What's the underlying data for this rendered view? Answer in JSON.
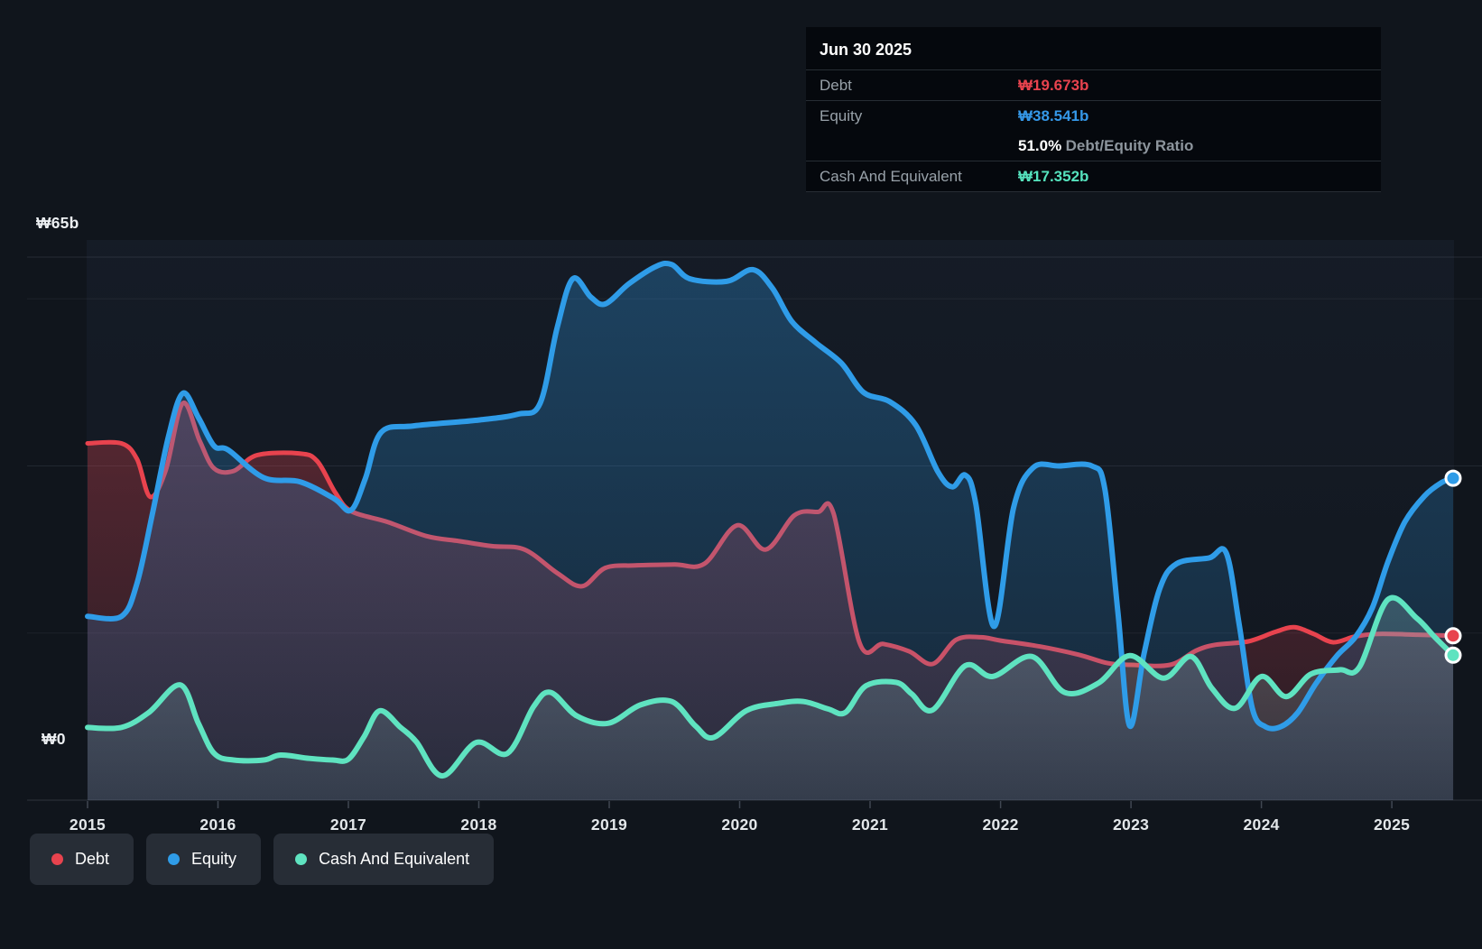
{
  "tooltip": {
    "date": "Jun 30 2025",
    "debt_label": "Debt",
    "debt_value": "₩19.673b",
    "equity_label": "Equity",
    "equity_value": "₩38.541b",
    "ratio_value": "51.0%",
    "ratio_label": "Debt/Equity Ratio",
    "cash_label": "Cash And Equivalent",
    "cash_value": "₩17.352b"
  },
  "y_axis": {
    "top_label": "₩65b",
    "zero_label": "₩0"
  },
  "legend": [
    {
      "label": "Debt",
      "color": "#e8434e"
    },
    {
      "label": "Equity",
      "color": "#2f9ce8"
    },
    {
      "label": "Cash And Equivalent",
      "color": "#5fe3c0"
    }
  ],
  "colors": {
    "debt": "#e8434e",
    "equity": "#2f9ce8",
    "cash": "#5fe3c0",
    "grid": "#9aa6b6",
    "tick_label": "#e3e7ea",
    "background": "#10151c",
    "tooltip_bg": "#05080d"
  },
  "chart_data": {
    "type": "area",
    "currency_unit": "₩ billions",
    "xlabel": "",
    "ylabel": "",
    "ylim": [
      0,
      65
    ],
    "xlim": [
      2015.0,
      2025.47
    ],
    "y_gridlines": [
      0,
      20,
      40,
      60,
      65
    ],
    "x_ticks": [
      "2015",
      "2016",
      "2017",
      "2018",
      "2019",
      "2020",
      "2021",
      "2022",
      "2023",
      "2024",
      "2025"
    ],
    "legend_position": "bottom-left",
    "last_point_date": "Jun 30 2025",
    "series": [
      {
        "name": "Debt",
        "color": "#e8434e",
        "end_value": 19.673,
        "points": [
          [
            2015.0,
            42.7
          ],
          [
            2015.26,
            42.7
          ],
          [
            2015.38,
            40.8
          ],
          [
            2015.48,
            36.3
          ],
          [
            2015.6,
            39.5
          ],
          [
            2015.73,
            47.5
          ],
          [
            2015.86,
            43.0
          ],
          [
            2015.97,
            39.7
          ],
          [
            2016.12,
            39.4
          ],
          [
            2016.3,
            41.3
          ],
          [
            2016.62,
            41.5
          ],
          [
            2016.76,
            40.6
          ],
          [
            2016.9,
            36.8
          ],
          [
            2017.02,
            34.6
          ],
          [
            2017.3,
            33.3
          ],
          [
            2017.6,
            31.6
          ],
          [
            2017.85,
            31.0
          ],
          [
            2018.1,
            30.4
          ],
          [
            2018.35,
            30.0
          ],
          [
            2018.6,
            27.2
          ],
          [
            2018.79,
            25.6
          ],
          [
            2018.97,
            27.8
          ],
          [
            2019.2,
            28.1
          ],
          [
            2019.5,
            28.2
          ],
          [
            2019.73,
            28.3
          ],
          [
            2019.98,
            32.9
          ],
          [
            2020.2,
            30.0
          ],
          [
            2020.42,
            34.1
          ],
          [
            2020.6,
            34.5
          ],
          [
            2020.72,
            34.3
          ],
          [
            2020.92,
            18.8
          ],
          [
            2021.1,
            18.7
          ],
          [
            2021.3,
            17.8
          ],
          [
            2021.48,
            16.3
          ],
          [
            2021.66,
            19.2
          ],
          [
            2021.85,
            19.5
          ],
          [
            2022.0,
            19.1
          ],
          [
            2022.3,
            18.4
          ],
          [
            2022.6,
            17.4
          ],
          [
            2022.82,
            16.4
          ],
          [
            2023.0,
            16.2
          ],
          [
            2023.3,
            16.2
          ],
          [
            2023.5,
            17.9
          ],
          [
            2023.65,
            18.6
          ],
          [
            2023.9,
            19.0
          ],
          [
            2024.1,
            20.1
          ],
          [
            2024.25,
            20.7
          ],
          [
            2024.4,
            19.9
          ],
          [
            2024.55,
            18.9
          ],
          [
            2024.72,
            19.6
          ],
          [
            2024.9,
            19.9
          ],
          [
            2025.2,
            19.8
          ],
          [
            2025.47,
            19.673
          ]
        ]
      },
      {
        "name": "Equity",
        "color": "#2f9ce8",
        "end_value": 38.541,
        "points": [
          [
            2015.0,
            22.0
          ],
          [
            2015.26,
            22.0
          ],
          [
            2015.38,
            26.0
          ],
          [
            2015.5,
            34.5
          ],
          [
            2015.62,
            43.5
          ],
          [
            2015.73,
            48.7
          ],
          [
            2015.85,
            45.8
          ],
          [
            2015.97,
            42.4
          ],
          [
            2016.08,
            41.9
          ],
          [
            2016.35,
            38.6
          ],
          [
            2016.63,
            38.1
          ],
          [
            2016.89,
            36.1
          ],
          [
            2017.02,
            34.7
          ],
          [
            2017.13,
            38.5
          ],
          [
            2017.25,
            44.0
          ],
          [
            2017.5,
            44.8
          ],
          [
            2018.0,
            45.5
          ],
          [
            2018.3,
            46.2
          ],
          [
            2018.47,
            47.5
          ],
          [
            2018.6,
            56.5
          ],
          [
            2018.72,
            62.4
          ],
          [
            2018.86,
            60.2
          ],
          [
            2018.97,
            59.4
          ],
          [
            2019.15,
            61.8
          ],
          [
            2019.36,
            63.9
          ],
          [
            2019.48,
            64.1
          ],
          [
            2019.62,
            62.4
          ],
          [
            2019.9,
            62.1
          ],
          [
            2020.1,
            63.5
          ],
          [
            2020.25,
            61.3
          ],
          [
            2020.4,
            57.3
          ],
          [
            2020.58,
            54.8
          ],
          [
            2020.78,
            52.3
          ],
          [
            2020.95,
            48.8
          ],
          [
            2021.15,
            47.7
          ],
          [
            2021.35,
            44.9
          ],
          [
            2021.52,
            39.3
          ],
          [
            2021.63,
            37.5
          ],
          [
            2021.73,
            38.9
          ],
          [
            2021.81,
            35.5
          ],
          [
            2021.95,
            20.8
          ],
          [
            2022.1,
            35.0
          ],
          [
            2022.25,
            39.8
          ],
          [
            2022.45,
            40.0
          ],
          [
            2022.7,
            40.0
          ],
          [
            2022.8,
            37.2
          ],
          [
            2022.9,
            22.5
          ],
          [
            2022.99,
            8.9
          ],
          [
            2023.1,
            17.5
          ],
          [
            2023.22,
            25.3
          ],
          [
            2023.35,
            28.3
          ],
          [
            2023.6,
            29.0
          ],
          [
            2023.73,
            29.6
          ],
          [
            2023.83,
            21.0
          ],
          [
            2023.93,
            11.0
          ],
          [
            2024.03,
            8.8
          ],
          [
            2024.15,
            8.8
          ],
          [
            2024.28,
            10.5
          ],
          [
            2024.42,
            14.0
          ],
          [
            2024.58,
            17.3
          ],
          [
            2024.72,
            19.5
          ],
          [
            2024.85,
            23.0
          ],
          [
            2024.97,
            28.5
          ],
          [
            2025.1,
            33.3
          ],
          [
            2025.25,
            36.4
          ],
          [
            2025.38,
            38.0
          ],
          [
            2025.47,
            38.541
          ]
        ]
      },
      {
        "name": "Cash And Equivalent",
        "color": "#5fe3c0",
        "end_value": 17.352,
        "points": [
          [
            2015.0,
            8.7
          ],
          [
            2015.26,
            8.7
          ],
          [
            2015.47,
            10.5
          ],
          [
            2015.71,
            13.8
          ],
          [
            2015.85,
            9.2
          ],
          [
            2015.97,
            5.6
          ],
          [
            2016.12,
            4.8
          ],
          [
            2016.35,
            4.8
          ],
          [
            2016.48,
            5.4
          ],
          [
            2016.7,
            5.0
          ],
          [
            2016.88,
            4.8
          ],
          [
            2017.0,
            4.9
          ],
          [
            2017.12,
            7.6
          ],
          [
            2017.24,
            10.7
          ],
          [
            2017.4,
            8.7
          ],
          [
            2017.52,
            7.0
          ],
          [
            2017.72,
            2.9
          ],
          [
            2017.98,
            6.9
          ],
          [
            2018.22,
            5.6
          ],
          [
            2018.42,
            11.2
          ],
          [
            2018.55,
            12.9
          ],
          [
            2018.75,
            10.1
          ],
          [
            2018.99,
            9.2
          ],
          [
            2019.24,
            11.4
          ],
          [
            2019.48,
            11.8
          ],
          [
            2019.66,
            8.9
          ],
          [
            2019.8,
            7.5
          ],
          [
            2020.05,
            10.7
          ],
          [
            2020.3,
            11.6
          ],
          [
            2020.49,
            11.8
          ],
          [
            2020.68,
            10.9
          ],
          [
            2020.81,
            10.5
          ],
          [
            2020.97,
            13.7
          ],
          [
            2021.2,
            14.1
          ],
          [
            2021.32,
            12.7
          ],
          [
            2021.48,
            10.8
          ],
          [
            2021.73,
            16.1
          ],
          [
            2021.94,
            14.8
          ],
          [
            2022.24,
            17.2
          ],
          [
            2022.49,
            12.9
          ],
          [
            2022.75,
            14.0
          ],
          [
            2022.99,
            17.3
          ],
          [
            2023.25,
            14.6
          ],
          [
            2023.46,
            17.2
          ],
          [
            2023.62,
            13.4
          ],
          [
            2023.8,
            11.0
          ],
          [
            2024.0,
            14.8
          ],
          [
            2024.19,
            12.4
          ],
          [
            2024.38,
            15.1
          ],
          [
            2024.6,
            15.6
          ],
          [
            2024.75,
            15.9
          ],
          [
            2024.97,
            24.0
          ],
          [
            2025.19,
            21.8
          ],
          [
            2025.33,
            19.5
          ],
          [
            2025.47,
            17.352
          ]
        ]
      }
    ]
  }
}
